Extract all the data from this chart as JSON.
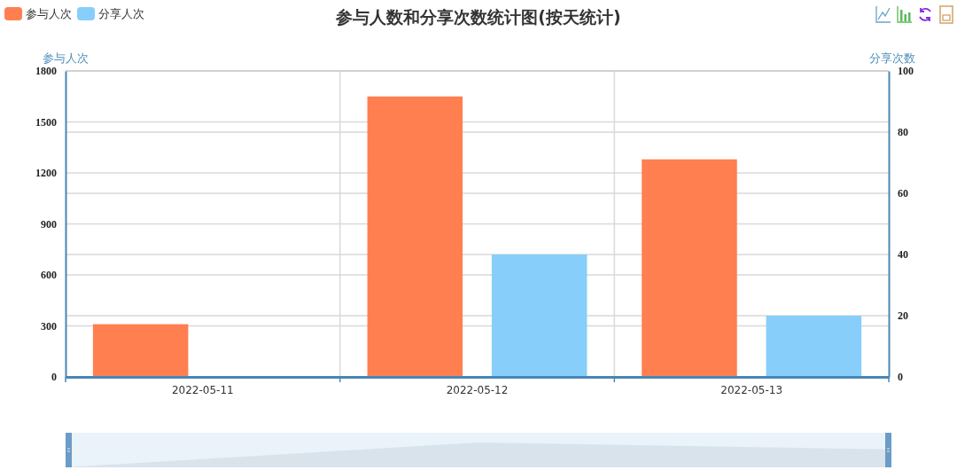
{
  "chart_data": {
    "type": "bar",
    "title": "参与人数和分享次数统计图(按天统计)",
    "ylabel": "参与人次",
    "y2label": "分享次数",
    "categories": [
      "2022-05-11",
      "2022-05-12",
      "2022-05-13"
    ],
    "series": [
      {
        "name": "参与人次",
        "color": "#ff7f50",
        "values": [
          310,
          1650,
          1280
        ]
      },
      {
        "name": "分享人次",
        "color": "#87cefa",
        "values": [
          0,
          40,
          20
        ],
        "axis": "y2"
      }
    ],
    "ylim": [
      0,
      1800
    ],
    "yticks": [
      0,
      300,
      600,
      900,
      1200,
      1500,
      1800
    ],
    "y2lim": [
      0,
      100
    ],
    "y2ticks": [
      0,
      20,
      40,
      60,
      80,
      100
    ],
    "grid": true,
    "legend": "top left"
  }
}
